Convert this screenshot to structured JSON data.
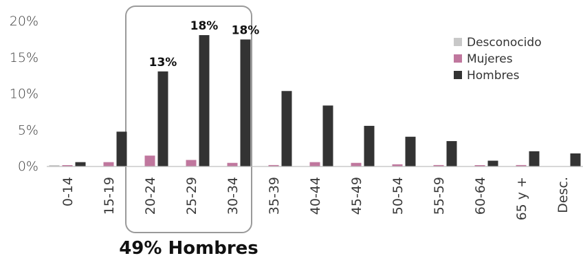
{
  "chart_data": {
    "type": "bar",
    "categories": [
      "0-14",
      "15-19",
      "20-24",
      "25-29",
      "30-34",
      "35-39",
      "40-44",
      "45-49",
      "50-54",
      "55-59",
      "60-64",
      "65 y +",
      "Desc."
    ],
    "series": [
      {
        "name": "Desconocido",
        "color": "#c8c8c8",
        "values": [
          0.1,
          0,
          0,
          0,
          0,
          0,
          0,
          0,
          0,
          0,
          0,
          0,
          0
        ]
      },
      {
        "name": "Mujeres",
        "color": "#c0779e",
        "values": [
          0.1,
          0.6,
          1.5,
          0.9,
          0.5,
          0.2,
          0.6,
          0.5,
          0.3,
          0.2,
          0.1,
          0.2,
          0
        ]
      },
      {
        "name": "Hombres",
        "color": "#333333",
        "values": [
          0.6,
          4.8,
          13.1,
          18.1,
          17.5,
          10.4,
          8.4,
          5.6,
          4.1,
          3.5,
          0.8,
          2.1,
          1.8
        ]
      }
    ],
    "ylim": [
      0,
      20
    ],
    "yticks": [
      "0%",
      "5%",
      "10%",
      "15%",
      "20%"
    ],
    "legend_order": [
      "Desconocido",
      "Mujeres",
      "Hombres"
    ],
    "legend_position": "top-right",
    "data_labels": [
      {
        "category": "20-24",
        "series": "Hombres",
        "text": "13%"
      },
      {
        "category": "25-29",
        "series": "Hombres",
        "text": "18%"
      },
      {
        "category": "30-34",
        "series": "Hombres",
        "text": "18%"
      }
    ],
    "highlight": {
      "categories": [
        "20-24",
        "25-29",
        "30-34"
      ],
      "annotation": "49% Hombres"
    },
    "grid": false
  }
}
